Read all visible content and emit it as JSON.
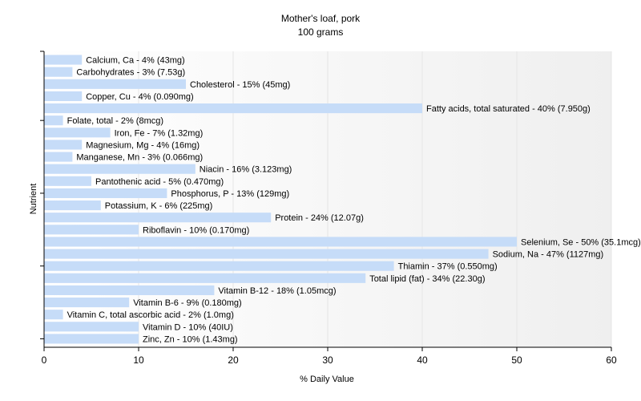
{
  "chart_data": {
    "type": "bar",
    "orientation": "horizontal",
    "title": "Mother's loaf, pork",
    "subtitle": "100 grams",
    "xlabel": "% Daily Value",
    "ylabel": "Nutrient",
    "xlim": [
      0,
      60
    ],
    "xticks": [
      0,
      10,
      20,
      30,
      40,
      50,
      60
    ],
    "grid": true,
    "bar_color": "#c6dcf8",
    "categories": [
      "Calcium, Ca",
      "Carbohydrates",
      "Cholesterol",
      "Copper, Cu",
      "Fatty acids, total saturated",
      "Folate, total",
      "Iron, Fe",
      "Magnesium, Mg",
      "Manganese, Mn",
      "Niacin",
      "Pantothenic acid",
      "Phosphorus, P",
      "Potassium, K",
      "Protein",
      "Riboflavin",
      "Selenium, Se",
      "Sodium, Na",
      "Thiamin",
      "Total lipid (fat)",
      "Vitamin B-12",
      "Vitamin B-6",
      "Vitamin C, total ascorbic acid",
      "Vitamin D",
      "Zinc, Zn"
    ],
    "values": [
      4,
      3,
      15,
      4,
      40,
      2,
      7,
      4,
      3,
      16,
      5,
      13,
      6,
      24,
      10,
      50,
      47,
      37,
      34,
      18,
      9,
      2,
      10,
      10
    ],
    "labels": [
      "Calcium, Ca - 4% (43mg)",
      "Carbohydrates - 3% (7.53g)",
      "Cholesterol - 15% (45mg)",
      "Copper, Cu - 4% (0.090mg)",
      "Fatty acids, total saturated - 40% (7.950g)",
      "Folate, total - 2% (8mcg)",
      "Iron, Fe - 7% (1.32mg)",
      "Magnesium, Mg - 4% (16mg)",
      "Manganese, Mn - 3% (0.066mg)",
      "Niacin - 16% (3.123mg)",
      "Pantothenic acid - 5% (0.470mg)",
      "Phosphorus, P - 13% (129mg)",
      "Potassium, K - 6% (225mg)",
      "Protein - 24% (12.07g)",
      "Riboflavin - 10% (0.170mg)",
      "Selenium, Se - 50% (35.1mcg)",
      "Sodium, Na - 47% (1127mg)",
      "Thiamin - 37% (0.550mg)",
      "Total lipid (fat) - 34% (22.30g)",
      "Vitamin B-12 - 18% (1.05mcg)",
      "Vitamin B-6 - 9% (0.180mg)",
      "Vitamin C, total ascorbic acid - 2% (1.0mg)",
      "Vitamin D - 10% (40IU)",
      "Zinc, Zn - 10% (1.43mg)"
    ]
  }
}
